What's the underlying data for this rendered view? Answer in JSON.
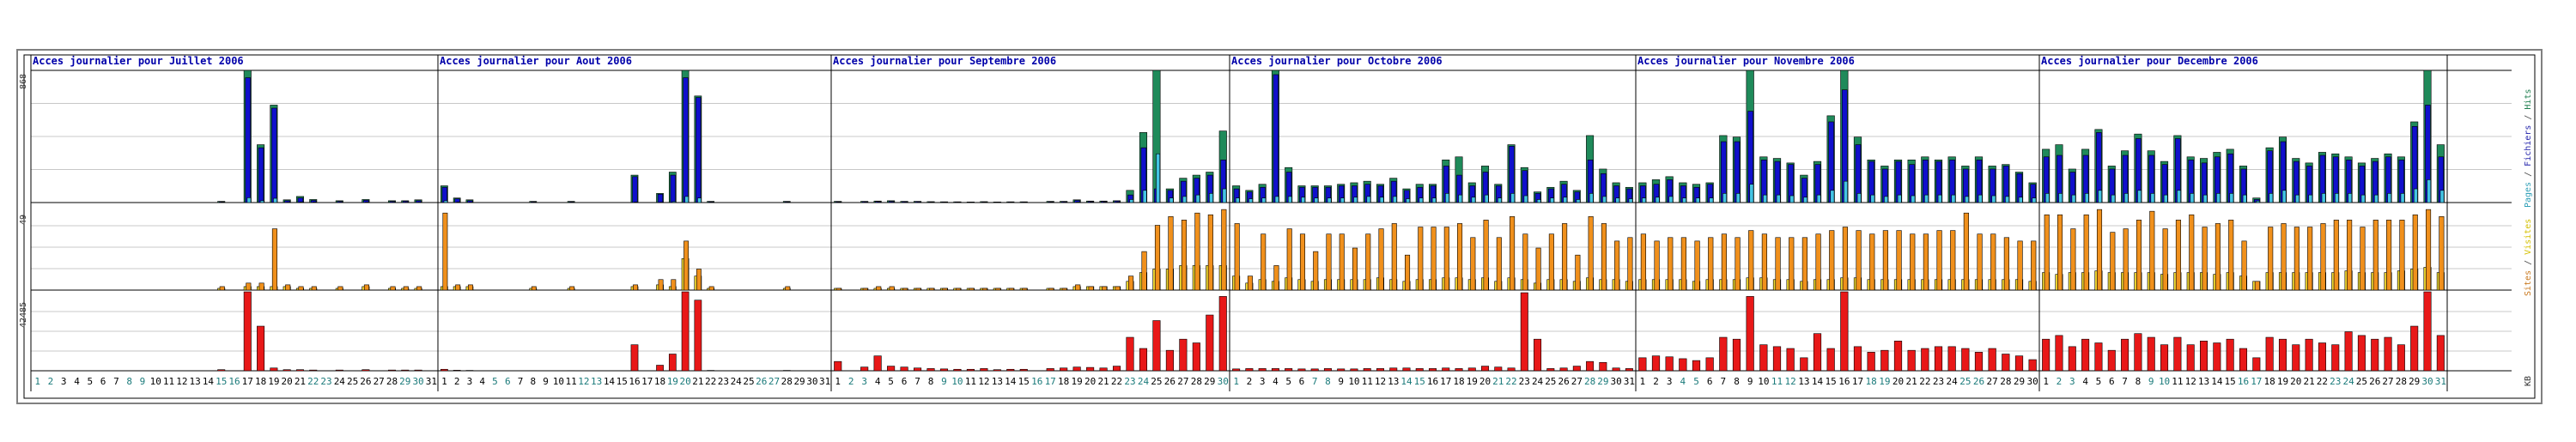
{
  "y_labels": {
    "top": "868",
    "middle": "49",
    "bottom": "42485"
  },
  "right_legend": {
    "top": [
      {
        "text": "Pages",
        "color": "#2f9fb7"
      },
      {
        "text": " / ",
        "color": "#444444"
      },
      {
        "text": "Fichiers",
        "color": "#2222aa"
      },
      {
        "text": " / ",
        "color": "#444444"
      },
      {
        "text": "Hits",
        "color": "#1f7f4f"
      }
    ],
    "middle": [
      {
        "text": "Sites",
        "color": "#c8781e"
      },
      {
        "text": " / ",
        "color": "#444444"
      },
      {
        "text": "Visites",
        "color": "#d4c000"
      }
    ],
    "bottom": "KB"
  },
  "colors": {
    "hits": "#1f8a5a",
    "files": "#1010cc",
    "pages": "#44c4e4",
    "visits": "#f0d830",
    "sites": "#f0901c",
    "kbytes": "#e81818",
    "weekday": "#000000",
    "weekend": "#1a7a7a"
  },
  "chart_data": {
    "type": "bar",
    "scale_max": {
      "hits": 868,
      "visits": 49,
      "kbytes": 42485
    },
    "months": [
      {
        "title": "Acces journalier pour Juillet 2006",
        "days": 31,
        "weekend_days": [
          1,
          2,
          8,
          9,
          15,
          16,
          22,
          23,
          29,
          30
        ],
        "hits": [
          0,
          0,
          0,
          0,
          0,
          0,
          0,
          0,
          0,
          0,
          0,
          0,
          0,
          0,
          8,
          0,
          868,
          380,
          640,
          18,
          40,
          20,
          0,
          12,
          0,
          20,
          0,
          12,
          12,
          18,
          0
        ],
        "files": [
          0,
          0,
          0,
          0,
          0,
          0,
          0,
          0,
          0,
          0,
          0,
          0,
          0,
          0,
          5,
          0,
          820,
          360,
          620,
          12,
          30,
          14,
          0,
          8,
          0,
          15,
          0,
          8,
          9,
          12,
          0
        ],
        "pages": [
          0,
          0,
          0,
          0,
          0,
          0,
          0,
          0,
          0,
          0,
          0,
          0,
          0,
          0,
          2,
          0,
          32,
          12,
          28,
          2,
          4,
          3,
          0,
          2,
          0,
          3,
          0,
          2,
          2,
          2,
          0
        ],
        "visits": [
          0,
          0,
          0,
          0,
          0,
          0,
          0,
          0,
          0,
          0,
          0,
          0,
          0,
          0,
          1,
          0,
          2,
          2,
          2,
          2,
          1,
          1,
          0,
          1,
          0,
          2,
          0,
          1,
          1,
          1,
          0
        ],
        "sites": [
          0,
          0,
          0,
          0,
          0,
          0,
          0,
          0,
          0,
          0,
          0,
          0,
          0,
          0,
          2,
          0,
          4,
          4,
          35,
          3,
          2,
          2,
          0,
          2,
          0,
          3,
          0,
          2,
          2,
          2,
          0
        ],
        "kbytes": [
          0,
          0,
          0,
          0,
          0,
          0,
          0,
          0,
          0,
          0,
          0,
          0,
          0,
          0,
          600,
          0,
          42485,
          24000,
          1500,
          600,
          600,
          400,
          0,
          400,
          0,
          600,
          0,
          400,
          400,
          400,
          0
        ]
      },
      {
        "title": "Acces journalier pour Aout 2006",
        "days": 31,
        "weekend_days": [
          5,
          6,
          12,
          13,
          19,
          20,
          26,
          27
        ],
        "hits": [
          110,
          30,
          18,
          0,
          0,
          0,
          0,
          8,
          0,
          0,
          8,
          0,
          0,
          0,
          0,
          180,
          0,
          60,
          200,
          868,
          700,
          8,
          0,
          0,
          0,
          0,
          0,
          8,
          0,
          0,
          0
        ],
        "files": [
          100,
          25,
          12,
          0,
          0,
          0,
          0,
          5,
          0,
          0,
          5,
          0,
          0,
          0,
          0,
          170,
          0,
          55,
          180,
          820,
          690,
          5,
          0,
          0,
          0,
          0,
          0,
          5,
          0,
          0,
          0
        ],
        "pages": [
          12,
          3,
          2,
          0,
          0,
          0,
          0,
          1,
          0,
          0,
          1,
          0,
          0,
          0,
          0,
          3,
          0,
          2,
          6,
          40,
          30,
          1,
          0,
          0,
          0,
          0,
          0,
          1,
          0,
          0,
          0
        ],
        "visits": [
          2,
          2,
          2,
          0,
          0,
          0,
          0,
          1,
          0,
          0,
          1,
          0,
          0,
          0,
          0,
          2,
          0,
          3,
          2,
          18,
          8,
          1,
          0,
          0,
          0,
          0,
          0,
          1,
          0,
          0,
          0
        ],
        "sites": [
          44,
          3,
          3,
          0,
          0,
          0,
          0,
          2,
          0,
          0,
          2,
          0,
          0,
          0,
          0,
          3,
          0,
          6,
          6,
          28,
          12,
          2,
          0,
          0,
          0,
          0,
          0,
          2,
          0,
          0,
          0
        ],
        "kbytes": [
          800,
          300,
          200,
          0,
          0,
          0,
          0,
          100,
          0,
          0,
          100,
          0,
          0,
          0,
          0,
          14000,
          0,
          3000,
          9000,
          42485,
          38000,
          200,
          0,
          0,
          0,
          0,
          0,
          200,
          0,
          0,
          0
        ]
      },
      {
        "title": "Acces journalier pour Septembre 2006",
        "days": 30,
        "weekend_days": [
          2,
          3,
          9,
          10,
          16,
          17,
          23,
          24,
          30
        ],
        "hits": [
          8,
          0,
          8,
          10,
          12,
          8,
          8,
          6,
          5,
          5,
          4,
          6,
          4,
          5,
          5,
          0,
          8,
          8,
          18,
          10,
          10,
          12,
          80,
          460,
          868,
          90,
          160,
          180,
          200,
          470
        ],
        "files": [
          5,
          0,
          6,
          7,
          8,
          6,
          6,
          4,
          4,
          4,
          3,
          4,
          3,
          4,
          4,
          0,
          5,
          6,
          14,
          8,
          8,
          10,
          50,
          360,
          90,
          80,
          140,
          160,
          180,
          280
        ],
        "pages": [
          2,
          0,
          2,
          2,
          2,
          2,
          2,
          1,
          1,
          1,
          1,
          1,
          1,
          1,
          1,
          0,
          2,
          2,
          4,
          3,
          3,
          3,
          20,
          80,
          320,
          30,
          40,
          50,
          60,
          90
        ],
        "visits": [
          1,
          0,
          1,
          1,
          1,
          1,
          1,
          1,
          1,
          1,
          1,
          1,
          1,
          1,
          1,
          0,
          1,
          1,
          2,
          2,
          2,
          2,
          5,
          10,
          12,
          12,
          14,
          14,
          14,
          14
        ],
        "sites": [
          1,
          0,
          1,
          2,
          2,
          1,
          1,
          1,
          1,
          1,
          1,
          1,
          1,
          1,
          1,
          0,
          1,
          1,
          3,
          2,
          2,
          2,
          8,
          22,
          37,
          42,
          40,
          44,
          43,
          46
        ],
        "kbytes": [
          5000,
          0,
          2000,
          8000,
          2500,
          2000,
          1500,
          1200,
          1000,
          800,
          800,
          1200,
          600,
          800,
          800,
          0,
          1200,
          1500,
          2000,
          1800,
          1500,
          2500,
          18000,
          12000,
          27000,
          11000,
          17000,
          15000,
          30000,
          40000
        ]
      },
      {
        "title": "Acces journalier pour Octobre 2006",
        "days": 31,
        "weekend_days": [
          1,
          7,
          8,
          14,
          15,
          21,
          22,
          28,
          29
        ],
        "hits": [
          110,
          80,
          120,
          868,
          230,
          110,
          110,
          110,
          120,
          130,
          140,
          120,
          160,
          90,
          120,
          120,
          280,
          300,
          130,
          240,
          120,
          380,
          230,
          70,
          100,
          140,
          80,
          440,
          220,
          130,
          100
        ],
        "files": [
          90,
          70,
          100,
          840,
          200,
          100,
          100,
          100,
          110,
          110,
          120,
          110,
          140,
          80,
          100,
          110,
          240,
          180,
          110,
          200,
          110,
          370,
          210,
          60,
          90,
          120,
          70,
          280,
          190,
          110,
          90
        ],
        "pages": [
          30,
          25,
          30,
          40,
          40,
          35,
          30,
          30,
          30,
          35,
          40,
          35,
          40,
          25,
          30,
          30,
          60,
          50,
          35,
          50,
          30,
          60,
          45,
          20,
          30,
          35,
          20,
          60,
          40,
          30,
          25
        ],
        "visits": [
          8,
          4,
          6,
          5,
          7,
          6,
          5,
          6,
          6,
          6,
          6,
          7,
          6,
          5,
          6,
          6,
          7,
          7,
          6,
          7,
          5,
          7,
          6,
          4,
          6,
          6,
          5,
          7,
          6,
          6,
          5
        ],
        "sites": [
          38,
          8,
          32,
          14,
          35,
          32,
          22,
          32,
          32,
          24,
          32,
          35,
          38,
          20,
          36,
          36,
          36,
          38,
          30,
          40,
          30,
          42,
          32,
          24,
          32,
          38,
          20,
          42,
          38,
          28,
          30
        ],
        "kbytes": [
          1000,
          1200,
          1200,
          1200,
          1200,
          1000,
          1000,
          1200,
          1000,
          1000,
          1200,
          1200,
          1500,
          1500,
          1200,
          1200,
          1500,
          1200,
          1500,
          2500,
          2000,
          1500,
          42000,
          17000,
          1200,
          1500,
          2500,
          5000,
          4500,
          1500,
          1200
        ]
      },
      {
        "title": "Acces journalier pour Novembre 2006",
        "days": 30,
        "weekend_days": [
          4,
          5,
          11,
          12,
          18,
          19,
          25,
          26
        ],
        "hits": [
          130,
          150,
          170,
          130,
          120,
          130,
          440,
          430,
          868,
          300,
          290,
          260,
          180,
          270,
          570,
          868,
          430,
          280,
          240,
          280,
          280,
          300,
          280,
          300,
          240,
          300,
          240,
          250,
          200,
          130
        ],
        "files": [
          110,
          120,
          150,
          110,
          100,
          120,
          400,
          400,
          600,
          280,
          270,
          250,
          160,
          250,
          530,
          740,
          380,
          270,
          220,
          270,
          250,
          280,
          270,
          280,
          220,
          280,
          220,
          240,
          190,
          120
        ],
        "pages": [
          30,
          35,
          40,
          30,
          30,
          30,
          60,
          60,
          120,
          50,
          50,
          45,
          35,
          50,
          80,
          140,
          60,
          50,
          40,
          50,
          45,
          50,
          50,
          50,
          40,
          50,
          45,
          40,
          35,
          30
        ],
        "visits": [
          6,
          6,
          6,
          6,
          5,
          6,
          6,
          6,
          7,
          7,
          6,
          6,
          5,
          6,
          6,
          7,
          7,
          6,
          6,
          6,
          6,
          6,
          6,
          6,
          6,
          6,
          6,
          6,
          6,
          5
        ],
        "sites": [
          32,
          28,
          30,
          30,
          28,
          30,
          32,
          30,
          34,
          32,
          30,
          30,
          30,
          32,
          34,
          36,
          34,
          32,
          34,
          34,
          32,
          32,
          34,
          34,
          44,
          32,
          32,
          30,
          28,
          28
        ],
        "kbytes": [
          7000,
          8000,
          7500,
          6500,
          5500,
          7000,
          18000,
          17000,
          40000,
          14000,
          13000,
          12000,
          7000,
          20000,
          12000,
          42485,
          13000,
          10000,
          11000,
          16000,
          11000,
          12000,
          13000,
          13000,
          12000,
          10000,
          12000,
          9000,
          8000,
          6000
        ],
        "annotations": []
      },
      {
        "title": "Acces journalier pour Decembre 2006",
        "days": 31,
        "weekend_days": [
          2,
          3,
          9,
          10,
          16,
          17,
          23,
          24,
          30,
          31
        ],
        "hits": [
          350,
          380,
          220,
          350,
          480,
          240,
          340,
          450,
          340,
          270,
          440,
          300,
          290,
          330,
          350,
          240,
          30,
          360,
          430,
          290,
          260,
          330,
          320,
          300,
          260,
          290,
          320,
          300,
          530,
          868,
          380
        ],
        "files": [
          300,
          310,
          200,
          310,
          460,
          220,
          310,
          420,
          310,
          250,
          420,
          280,
          260,
          300,
          320,
          220,
          20,
          340,
          400,
          270,
          240,
          310,
          300,
          280,
          240,
          270,
          300,
          280,
          500,
          640,
          300
        ],
        "pages": [
          60,
          60,
          50,
          60,
          80,
          50,
          60,
          80,
          60,
          50,
          80,
          60,
          50,
          60,
          60,
          50,
          10,
          60,
          80,
          50,
          50,
          60,
          60,
          60,
          50,
          50,
          60,
          60,
          90,
          150,
          80
        ],
        "visits": [
          10,
          9,
          10,
          10,
          11,
          10,
          10,
          10,
          10,
          9,
          10,
          10,
          10,
          9,
          10,
          8,
          5,
          10,
          10,
          10,
          10,
          10,
          10,
          11,
          10,
          10,
          10,
          11,
          12,
          13,
          10
        ],
        "sites": [
          43,
          43,
          35,
          43,
          46,
          33,
          35,
          40,
          45,
          35,
          40,
          43,
          36,
          38,
          40,
          28,
          5,
          36,
          38,
          36,
          36,
          38,
          40,
          40,
          36,
          40,
          40,
          40,
          43,
          46,
          42
        ],
        "kbytes": [
          17000,
          19000,
          13000,
          17000,
          15000,
          11000,
          17000,
          20000,
          18000,
          14000,
          18000,
          14000,
          16000,
          15000,
          17000,
          12000,
          7000,
          18000,
          17000,
          14000,
          17000,
          15000,
          14000,
          21000,
          19000,
          17000,
          18000,
          14000,
          24000,
          42485,
          19000
        ]
      }
    ]
  }
}
